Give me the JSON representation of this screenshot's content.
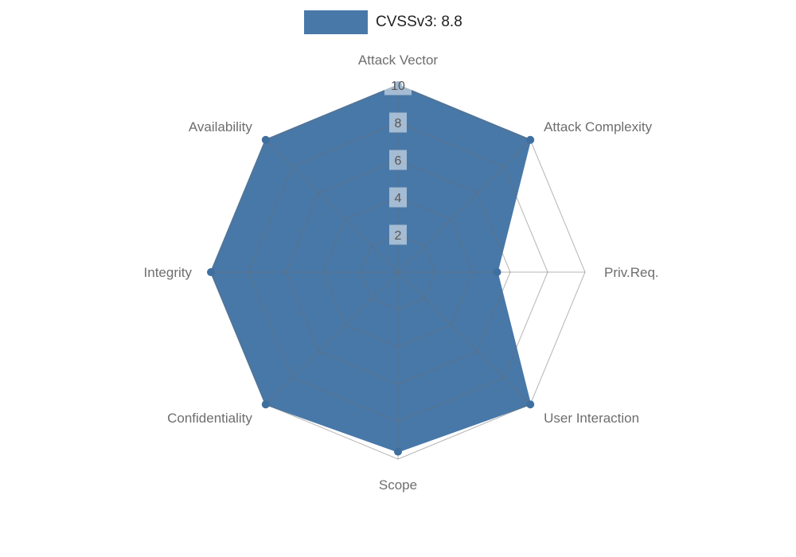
{
  "legend": {
    "label": "CVSSv3: 8.8"
  },
  "chart_data": {
    "type": "radar",
    "title": "CVSSv3: 8.8",
    "categories": [
      "Attack Vector",
      "Attack Complexity",
      "Priv.Req.",
      "User Interaction",
      "Scope",
      "Confidentiality",
      "Integrity",
      "Availability"
    ],
    "series": [
      {
        "name": "CVSSv3: 8.8",
        "values": [
          10,
          10,
          5.3,
          10,
          9.6,
          10,
          10,
          10
        ]
      }
    ],
    "radial_ticks": [
      2,
      4,
      6,
      8,
      10
    ],
    "range": [
      0,
      10
    ],
    "grid": true,
    "legend_position": "top",
    "colors": {
      "fill": "#4878a8",
      "marker": "#3f6f9f",
      "grid": "#6b6b6b",
      "axis_label": "#6e6e6e",
      "tick_text": "#555555",
      "tick_box": "#ffffff",
      "title_text": "#222222"
    }
  }
}
